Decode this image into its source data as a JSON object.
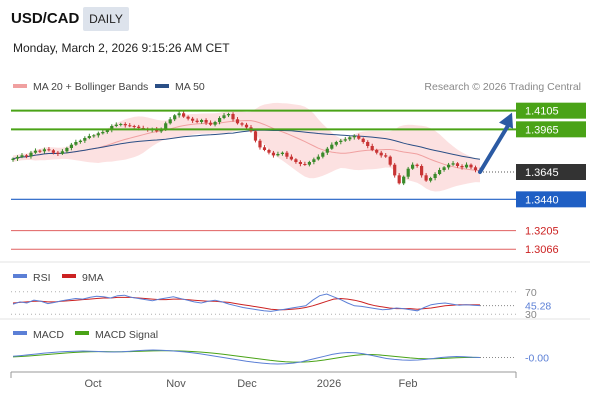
{
  "header": {
    "symbol": "USD/CAD",
    "timeframe": "DAILY",
    "datetime": "Monday, March 2, 2026 9:15:26 AM CET"
  },
  "legend": {
    "ma20_label": "MA 20 + Bollinger Bands",
    "ma50_label": "MA 50",
    "credit": "Research © 2026 Trading Central"
  },
  "colors": {
    "bullish": "#3a8a2a",
    "bearish": "#c83434",
    "ma20": "#f0a0a0",
    "ma50": "#2b4f86",
    "bollinger_fill": "#fbdcdc",
    "resistance": "#4aa317",
    "support": "#1f5fc4",
    "low_support": "#e06060",
    "rsi": "#5b7fd6",
    "signal_ma": "#cc2222",
    "macd": "#5b7fd6",
    "macd_signal": "#4aa317",
    "arrow": "#2b5aa3"
  },
  "chart_data": [
    {
      "type": "candlestick",
      "title": "USD/CAD DAILY",
      "x_labels": [
        "Oct",
        "Nov",
        "Dec",
        "2026",
        "Feb"
      ],
      "ylim": [
        1.3,
        1.42
      ],
      "price_levels": [
        {
          "label": "1.4105",
          "value": 1.4105,
          "kind": "resistance"
        },
        {
          "label": "1.3965",
          "value": 1.3965,
          "kind": "resistance"
        },
        {
          "label": "1.3645",
          "value": 1.3645,
          "kind": "current"
        },
        {
          "label": "1.3440",
          "value": 1.344,
          "kind": "support"
        },
        {
          "label": "1.3205",
          "value": 1.3205,
          "kind": "support-2"
        },
        {
          "label": "1.3066",
          "value": 1.3066,
          "kind": "support-3"
        }
      ],
      "series": [
        {
          "name": "MA 20 + Bollinger Bands"
        },
        {
          "name": "MA 50"
        }
      ],
      "closes": [
        1.3745,
        1.3758,
        1.377,
        1.3762,
        1.379,
        1.3805,
        1.38,
        1.3815,
        1.3808,
        1.379,
        1.3782,
        1.38,
        1.3825,
        1.385,
        1.387,
        1.388,
        1.39,
        1.3915,
        1.392,
        1.3935,
        1.3945,
        1.396,
        1.399,
        1.4,
        1.4005,
        1.3995,
        1.399,
        1.3985,
        1.3975,
        1.397,
        1.396,
        1.3965,
        1.395,
        1.397,
        1.401,
        1.404,
        1.407,
        1.4085,
        1.406,
        1.4045,
        1.403,
        1.402,
        1.4035,
        1.4015,
        1.4,
        1.402,
        1.405,
        1.407,
        1.408,
        1.404,
        1.401,
        1.4,
        1.398,
        1.395,
        1.388,
        1.383,
        1.381,
        1.379,
        1.377,
        1.378,
        1.379,
        1.376,
        1.374,
        1.372,
        1.3705,
        1.37,
        1.372,
        1.374,
        1.376,
        1.379,
        1.382,
        1.385,
        1.387,
        1.388,
        1.389,
        1.3905,
        1.3915,
        1.3895,
        1.387,
        1.384,
        1.381,
        1.379,
        1.377,
        1.376,
        1.37,
        1.362,
        1.356,
        1.361,
        1.367,
        1.37,
        1.369,
        1.362,
        1.358,
        1.36,
        1.363,
        1.366,
        1.368,
        1.37,
        1.371,
        1.369,
        1.368,
        1.37,
        1.368,
        1.366,
        1.3645
      ],
      "projection": {
        "from": 1.3645,
        "to": 1.4105
      }
    },
    {
      "type": "line",
      "title": "RSI",
      "series": [
        {
          "name": "RSI"
        },
        {
          "name": "9MA"
        }
      ],
      "levels": [
        "70",
        "30"
      ],
      "current_value": "45.28",
      "ylim": [
        25,
        75
      ],
      "rsi": [
        48,
        52,
        50,
        55,
        53,
        49,
        51,
        54,
        56,
        58,
        57,
        60,
        62,
        61,
        59,
        63,
        64,
        60,
        58,
        56,
        54,
        57,
        59,
        61,
        58,
        55,
        52,
        50,
        53,
        55,
        52,
        48,
        45,
        42,
        40,
        38,
        36,
        35,
        37,
        39,
        41,
        43,
        45,
        55,
        63,
        66,
        61,
        56,
        50,
        45,
        44,
        42,
        40,
        38,
        39,
        41,
        40,
        38,
        36,
        42,
        47,
        49,
        50,
        48,
        46,
        47,
        46,
        45.28
      ],
      "ma9": [
        50,
        51,
        52,
        53,
        53,
        52,
        52,
        53,
        54,
        55,
        56,
        57,
        58,
        59,
        59,
        60,
        60,
        60,
        59,
        58,
        57,
        56,
        56,
        57,
        57,
        56,
        55,
        54,
        53,
        53,
        52,
        51,
        49,
        47,
        45,
        43,
        41,
        39,
        38,
        38,
        39,
        40,
        42,
        45,
        49,
        53,
        57,
        58,
        57,
        55,
        52,
        48,
        45,
        43,
        41,
        40,
        40,
        40,
        39,
        40,
        41,
        43,
        45,
        46,
        47,
        47,
        47,
        46.6
      ]
    },
    {
      "type": "line",
      "title": "MACD",
      "series": [
        {
          "name": "MACD"
        },
        {
          "name": "MACD Signal"
        }
      ],
      "current_value": "-0.00",
      "ylim": [
        -1,
        1
      ],
      "macd": [
        0.1,
        0.15,
        0.22,
        0.28,
        0.35,
        0.4,
        0.45,
        0.48,
        0.5,
        0.52,
        0.5,
        0.48,
        0.45,
        0.44,
        0.46,
        0.5,
        0.55,
        0.58,
        0.6,
        0.58,
        0.55,
        0.5,
        0.45,
        0.38,
        0.3,
        0.2,
        0.1,
        0.0,
        -0.1,
        -0.2,
        -0.3,
        -0.38,
        -0.45,
        -0.5,
        -0.52,
        -0.5,
        -0.45,
        -0.35,
        -0.2,
        -0.05,
        0.1,
        0.25,
        0.35,
        0.4,
        0.38,
        0.3,
        0.18,
        0.05,
        -0.08,
        -0.15,
        -0.2,
        -0.22,
        -0.2,
        -0.15,
        -0.08,
        0.0,
        0.05,
        0.08,
        0.06,
        0.02,
        -0.0
      ],
      "signal": [
        0.05,
        0.08,
        0.12,
        0.17,
        0.22,
        0.27,
        0.32,
        0.37,
        0.41,
        0.44,
        0.46,
        0.47,
        0.47,
        0.46,
        0.46,
        0.47,
        0.49,
        0.51,
        0.53,
        0.54,
        0.54,
        0.53,
        0.51,
        0.48,
        0.44,
        0.39,
        0.33,
        0.26,
        0.18,
        0.1,
        0.02,
        -0.06,
        -0.14,
        -0.22,
        -0.29,
        -0.34,
        -0.37,
        -0.37,
        -0.34,
        -0.28,
        -0.2,
        -0.1,
        0.0,
        0.1,
        0.18,
        0.23,
        0.24,
        0.21,
        0.15,
        0.09,
        0.03,
        -0.03,
        -0.08,
        -0.1,
        -0.1,
        -0.08,
        -0.05,
        -0.02,
        0.0,
        0.01,
        0.0
      ]
    }
  ]
}
